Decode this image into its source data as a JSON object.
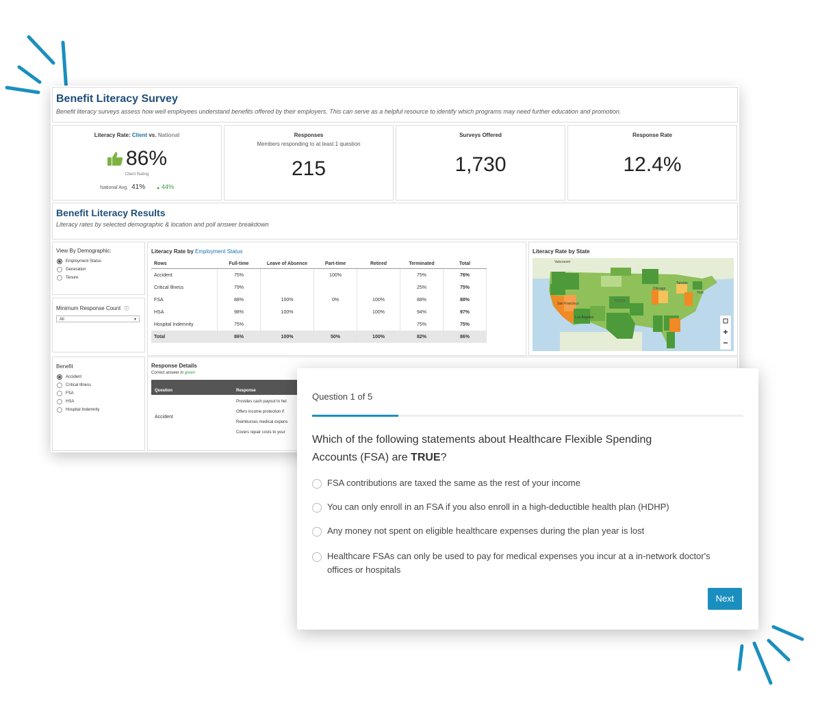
{
  "survey": {
    "title": "Benefit Literacy Survey",
    "description": "Benefit literacy surveys assess how well employees understand benefits offered by their employers.  This can serve as a helpful resource to identify which programs may need further education and promotion."
  },
  "kpis": {
    "literacy": {
      "label_prefix": "Literacy Rate: ",
      "label_client": "Client",
      "label_vs": " vs. ",
      "label_national": "National",
      "value": "86%",
      "sub": "Client Rating",
      "national_label": "National Avg.",
      "national_value": "41%",
      "delta": "44%"
    },
    "responses": {
      "label": "Responses",
      "sub": "Members responding to at least 1 question",
      "value": "215"
    },
    "offered": {
      "label": "Surveys Offered",
      "value": "1,730"
    },
    "rate": {
      "label": "Response Rate",
      "value": "12.4%"
    }
  },
  "results": {
    "title": "Benefit Literacy Results",
    "subtitle": "Literacy rates by selected demographic & location and poll answer breakdown"
  },
  "filters": {
    "demographic_label": "View By Demographic:",
    "demographic_options": [
      "Employment Status",
      "Generation",
      "Tenure"
    ],
    "min_count_label": "Minimum Response Count",
    "min_count_value": "All",
    "benefit_label": "Benefit",
    "benefit_options": [
      "Accident",
      "Critical Illness",
      "FSA",
      "HSA",
      "Hospital Indemnity"
    ]
  },
  "literacy_table": {
    "title_prefix": "Literacy Rate by ",
    "title_dim": "Employment Status",
    "headers": [
      "Rows",
      "Full-time",
      "Leave of Absence",
      "Part-time",
      "Retired",
      "Terminated",
      "Total"
    ],
    "rows": [
      [
        "Accident",
        "75%",
        "",
        "100%",
        "",
        "75%",
        "76%"
      ],
      [
        "Critical Illness",
        "79%",
        "",
        "",
        "",
        "25%",
        "75%"
      ],
      [
        "FSA",
        "88%",
        "100%",
        "0%",
        "100%",
        "88%",
        "88%"
      ],
      [
        "HSA",
        "98%",
        "100%",
        "",
        "100%",
        "94%",
        "97%"
      ],
      [
        "Hospital Indemnity",
        "75%",
        "",
        "",
        "",
        "75%",
        "75%"
      ]
    ],
    "total": [
      "Total",
      "86%",
      "100%",
      "50%",
      "100%",
      "82%",
      "86%"
    ]
  },
  "map": {
    "title": "Literacy Rate by State",
    "cities": [
      "Vancouver",
      "Toronto",
      "Chicago",
      "San Francisco",
      "Los Angeles",
      "York"
    ],
    "country_label": "TATES",
    "colors": {
      "high": "#4c9a3a",
      "mid": "#8fc05a",
      "low": "#f08a24",
      "water": "#bcd9ec"
    }
  },
  "response_details": {
    "title": "Response Details",
    "subtitle_prefix": "Correct answer in ",
    "subtitle_green": "green",
    "headers": [
      "Question",
      "Response"
    ],
    "question": "Accident",
    "responses": [
      "Provides cash payout to hel",
      "Offers income protection if",
      "Reimburses medical expens",
      "Covers repair costs to your"
    ]
  },
  "quiz": {
    "progress_label": "Question 1 of 5",
    "progress_fraction": 0.2,
    "question_line1": "Which of the following statements about Healthcare Flexible Spending",
    "question_line2_prefix": "Accounts (FSA) are ",
    "question_emphasis": "TRUE",
    "question_suffix": "?",
    "options": [
      "FSA contributions are taxed the same as the rest of your income",
      "You can only enroll in an FSA if you also enroll in a high-deductible health plan (HDHP)",
      "Any money not spent on eligible healthcare expenses during the plan year is lost",
      "Healthcare FSAs can only be used to pay for medical expenses you incur at a in-network doctor's offices or hospitals"
    ],
    "next_label": "Next"
  },
  "colors": {
    "accent": "#1a8fbf",
    "title_blue": "#1e4e79",
    "positive": "#2e9e3a",
    "thumb": "#7cb342"
  }
}
